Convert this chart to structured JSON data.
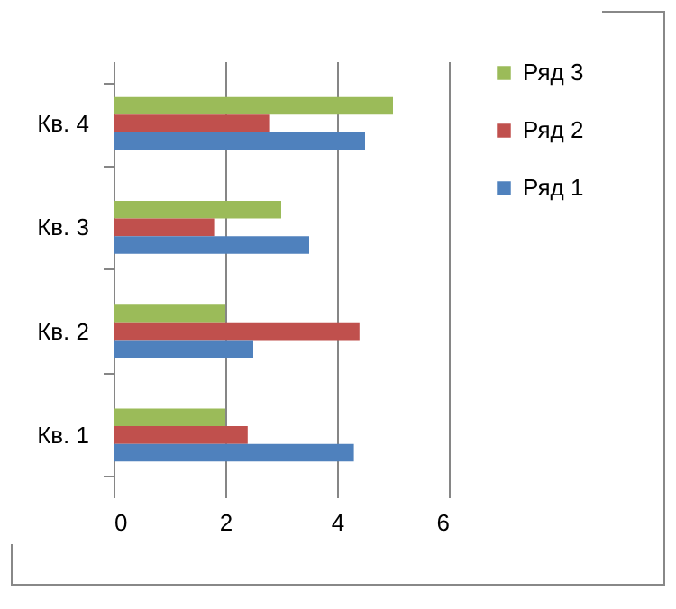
{
  "chart_data": {
    "type": "bar",
    "orientation": "horizontal",
    "categories": [
      "Кв. 4",
      "Кв. 3",
      "Кв. 2",
      "Кв. 1"
    ],
    "series": [
      {
        "name": "Ряд 3",
        "color": "#9bbb59",
        "values": [
          5,
          3,
          2,
          2
        ]
      },
      {
        "name": "Ряд 2",
        "color": "#c0504d",
        "values": [
          2.8,
          1.8,
          4.4,
          2.4
        ]
      },
      {
        "name": "Ряд 1",
        "color": "#4f81bd",
        "values": [
          4.5,
          3.5,
          2.5,
          4.3
        ]
      }
    ],
    "xlim": [
      0,
      6
    ],
    "xticks": [
      0,
      2,
      4,
      6
    ],
    "grid": "x",
    "legend": "right"
  }
}
